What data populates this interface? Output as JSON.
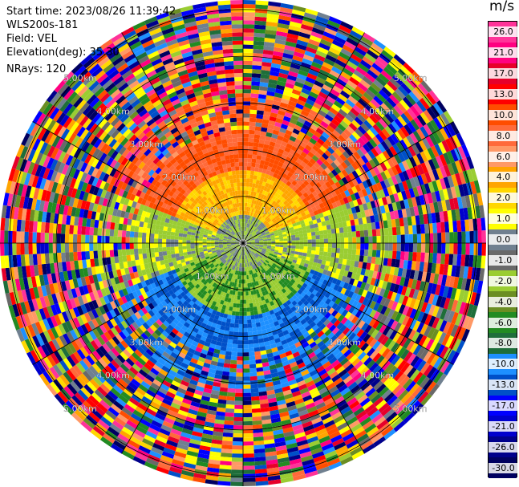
{
  "info": {
    "start_time": "Start time: 2023/08/26 11:39:42",
    "site": "WLS200s-181",
    "field": "Field: VEL",
    "elevation": "Elevation(deg): 35.30",
    "nrays": "NRays: 120"
  },
  "colorbar": {
    "unit": "m/s",
    "ticks": [
      "26.0",
      "21.0",
      "17.0",
      "13.0",
      "10.0",
      "8.0",
      "6.0",
      "4.0",
      "2.0",
      "1.0",
      "0.0",
      "-1.0",
      "-2.0",
      "-4.0",
      "-6.0",
      "-8.0",
      "-10.0",
      "-13.0",
      "-17.0",
      "-21.0",
      "-26.0",
      "-30.0"
    ],
    "colors": [
      "#ff3399",
      "#ff0080",
      "#e6002a",
      "#ff0000",
      "#ff4d00",
      "#ff6a3a",
      "#ff9966",
      "#ffa500",
      "#ffd700",
      "#ffff00",
      "#708090",
      "#696969",
      "#9acd32",
      "#6b8e23",
      "#228b22",
      "#1e6e3a",
      "#1e90ff",
      "#0050c8",
      "#0000ff",
      "#0000cd",
      "#00008b",
      "#000060"
    ]
  },
  "ppi": {
    "range_rings": [
      "1.00km",
      "2.00km",
      "3.00km",
      "4.00km",
      "5.00km"
    ],
    "ring_labels_shown": [
      "5.00km",
      "4.00km",
      "3.00km",
      "2.00km",
      "1.00km",
      "1.00km",
      "2.00km",
      "3.00km",
      "4.00km",
      "5.00km",
      "4.00km",
      "3.00km",
      "2.00km",
      "1.00km",
      "1.00km",
      "2.00km",
      "3.00km",
      "4.00km",
      "5.00km"
    ],
    "rays": 120
  }
}
